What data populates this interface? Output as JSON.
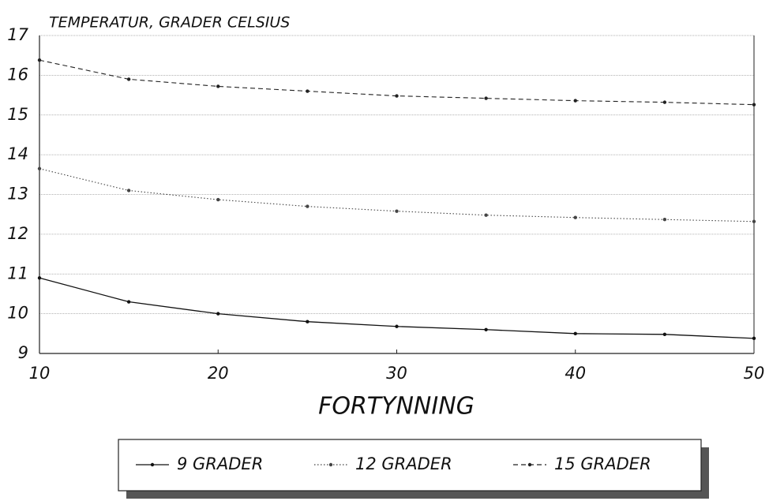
{
  "chart_data": {
    "type": "line",
    "title": "TEMPERATUR, GRADER CELSIUS",
    "x_label": "FORTYNNING",
    "x": [
      10,
      15,
      20,
      25,
      30,
      35,
      40,
      45,
      50
    ],
    "series": [
      {
        "name": "9 GRADER",
        "color": "#111111",
        "dash": "solid",
        "values": [
          10.9,
          10.3,
          10.0,
          9.8,
          9.68,
          9.6,
          9.5,
          9.48,
          9.38
        ]
      },
      {
        "name": "12 GRADER",
        "color": "#444444",
        "dash": "dotted",
        "values": [
          13.65,
          13.1,
          12.87,
          12.7,
          12.58,
          12.48,
          12.42,
          12.37,
          12.32
        ]
      },
      {
        "name": "15 GRADER",
        "color": "#222222",
        "dash": "dashed",
        "values": [
          16.38,
          15.9,
          15.72,
          15.6,
          15.48,
          15.42,
          15.36,
          15.32,
          15.26
        ]
      }
    ],
    "xlim": [
      10,
      50
    ],
    "xticks": [
      10,
      20,
      30,
      40,
      50
    ],
    "ylim": [
      9,
      17
    ],
    "yticks": [
      9,
      10,
      11,
      12,
      13,
      14,
      15,
      16,
      17
    ],
    "grid": true,
    "legend": "bottom"
  }
}
